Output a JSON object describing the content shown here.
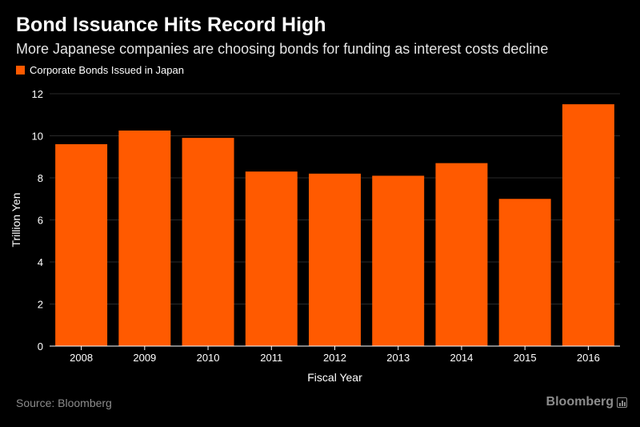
{
  "title": "Bond Issuance Hits Record High",
  "subtitle": "More Japanese companies are choosing bonds for funding as interest costs decline",
  "legend": {
    "label": "Corporate Bonds Issued in Japan",
    "color": "#ff5a00"
  },
  "source": "Source: Bloomberg",
  "brand": {
    "label": "Bloomberg",
    "icon": "bar-chart-icon"
  },
  "colors": {
    "background": "#000000",
    "bar": "#ff5a00",
    "grid": "#2a2a2a",
    "axis": "#ffffff",
    "muted": "#8c8c8c"
  },
  "chart_data": {
    "type": "bar",
    "title": "Bond Issuance Hits Record High",
    "subtitle": "More Japanese companies are choosing bonds for funding as interest costs decline",
    "xlabel": "Fiscal Year",
    "ylabel": "Trillion Yen",
    "categories": [
      "2008",
      "2009",
      "2010",
      "2011",
      "2012",
      "2013",
      "2014",
      "2015",
      "2016"
    ],
    "series": [
      {
        "name": "Corporate Bonds Issued in Japan",
        "values": [
          9.6,
          10.25,
          9.9,
          8.3,
          8.2,
          8.1,
          8.7,
          7.0,
          11.5
        ]
      }
    ],
    "ylim": [
      0,
      12
    ],
    "yticks": [
      "0",
      "2",
      "4",
      "6",
      "8",
      "10",
      "12"
    ],
    "grid": true,
    "legend_position": "top-left"
  }
}
